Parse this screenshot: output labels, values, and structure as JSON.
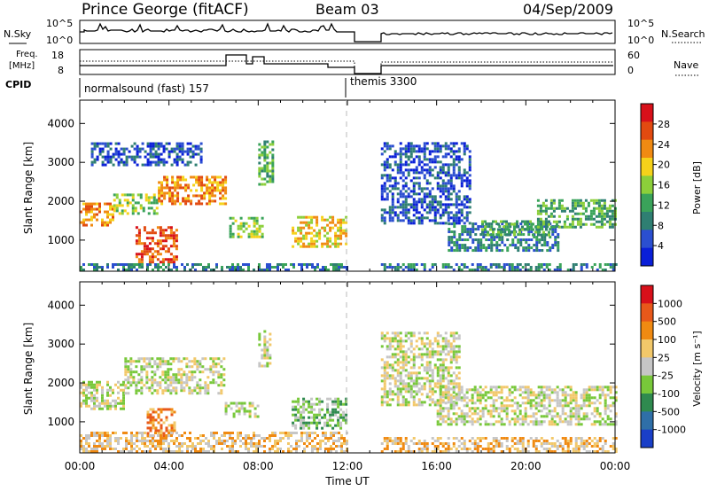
{
  "header": {
    "station": "Prince George (fitACF)",
    "beam": "Beam 03",
    "date": "04/Sep/2009"
  },
  "noise_panel": {
    "left_label": "N.Sky",
    "left_ticks": [
      "10^5",
      "10^0"
    ],
    "right_label": "N.Search",
    "right_ticks": [
      "10^5",
      "10^0"
    ]
  },
  "freq_panel": {
    "left_label_1": "Freq.",
    "left_label_2": "[MHz]",
    "left_ticks": [
      "18",
      "8"
    ],
    "right_label": "Nave",
    "right_ticks": [
      "60",
      "0"
    ]
  },
  "cpid": {
    "label": "CPID",
    "mode_1": "normalsound (fast) 157",
    "mode_2": "themis 3300"
  },
  "x_axis": {
    "label": "Time UT",
    "ticks": [
      "00:00",
      "04:00",
      "08:00",
      "12:00",
      "16:00",
      "20:00",
      "00:00"
    ]
  },
  "power_colorbar": {
    "label": "Power [dB]",
    "ticks": [
      "28",
      "24",
      "20",
      "16",
      "12",
      "8",
      "4"
    ]
  },
  "velocity_colorbar": {
    "label": "Velocity [m s⁻¹]",
    "ticks": [
      "1000",
      "500",
      "100",
      "25",
      "-25",
      "-100",
      "-500",
      "-1000"
    ]
  },
  "chart_data": [
    {
      "type": "heatmap",
      "name": "power",
      "xlabel": "Time UT",
      "ylabel": "Slant Range [km]",
      "xlim": [
        0,
        24
      ],
      "ylim": [
        200,
        4600
      ],
      "yticks": [
        "1000",
        "2000",
        "3000",
        "4000"
      ],
      "colorbar_colors": [
        "#0a1fd8",
        "#2b4fd0",
        "#2f7f72",
        "#3aa35a",
        "#8ccf3a",
        "#f5d21a",
        "#f08a12",
        "#e24a10",
        "#d8101a"
      ],
      "gap_hours": [
        12,
        13.5
      ],
      "regions": [
        {
          "t0": 0.0,
          "t1": 1.5,
          "r0": 1350,
          "r1": 1900,
          "level": 6
        },
        {
          "t0": 1.5,
          "t1": 3.5,
          "r0": 1650,
          "r1": 2150,
          "level": 4
        },
        {
          "t0": 3.5,
          "t1": 6.5,
          "r0": 1900,
          "r1": 2600,
          "level": 6
        },
        {
          "t0": 2.5,
          "t1": 4.3,
          "r0": 400,
          "r1": 1300,
          "level": 7
        },
        {
          "t0": 0.5,
          "t1": 5.5,
          "r0": 2900,
          "r1": 3500,
          "level": 1
        },
        {
          "t0": 6.7,
          "t1": 8.2,
          "r0": 1050,
          "r1": 1550,
          "level": 4
        },
        {
          "t0": 8.0,
          "t1": 8.6,
          "r0": 2400,
          "r1": 3500,
          "level": 3
        },
        {
          "t0": 9.5,
          "t1": 11.9,
          "r0": 800,
          "r1": 1600,
          "level": 5
        },
        {
          "t0": 13.5,
          "t1": 17.5,
          "r0": 1400,
          "r1": 3500,
          "level": 1
        },
        {
          "t0": 16.5,
          "t1": 21.5,
          "r0": 700,
          "r1": 1400,
          "level": 2
        },
        {
          "t0": 18.0,
          "t1": 21.0,
          "r0": 1100,
          "r1": 1500,
          "level": 3
        },
        {
          "t0": 20.5,
          "t1": 24.0,
          "r0": 1300,
          "r1": 2000,
          "level": 3
        },
        {
          "t0": 0.0,
          "t1": 12.0,
          "r0": 200,
          "r1": 400,
          "level": 2
        },
        {
          "t0": 13.5,
          "t1": 24.0,
          "r0": 200,
          "r1": 400,
          "level": 2
        }
      ]
    },
    {
      "type": "heatmap",
      "name": "velocity",
      "xlabel": "Time UT",
      "ylabel": "Slant Range [km]",
      "xlim": [
        0,
        24
      ],
      "ylim": [
        200,
        4600
      ],
      "yticks": [
        "1000",
        "2000",
        "3000",
        "4000"
      ],
      "colorbar_colors": [
        "#1a3fc8",
        "#2f6fa8",
        "#2f8a4f",
        "#78c83a",
        "#c6c6c6",
        "#f2c86a",
        "#f08a12",
        "#e8581a",
        "#d8101a"
      ],
      "gap_hours": [
        12,
        13.5
      ],
      "regions": [
        {
          "t0": 0.0,
          "t1": 2.0,
          "r0": 1300,
          "r1": 2000,
          "level": 4
        },
        {
          "t0": 2.0,
          "t1": 6.5,
          "r0": 1700,
          "r1": 2600,
          "level": 4
        },
        {
          "t0": 3.0,
          "t1": 4.3,
          "r0": 600,
          "r1": 1300,
          "level": 6
        },
        {
          "t0": 6.5,
          "t1": 8.0,
          "r0": 1100,
          "r1": 1500,
          "level": 4
        },
        {
          "t0": 8.0,
          "t1": 8.5,
          "r0": 2400,
          "r1": 3300,
          "level": 4
        },
        {
          "t0": 9.5,
          "t1": 11.9,
          "r0": 800,
          "r1": 1600,
          "level": 3
        },
        {
          "t0": 0.0,
          "t1": 12.0,
          "r0": 200,
          "r1": 700,
          "level": 5
        },
        {
          "t0": 13.5,
          "t1": 17.0,
          "r0": 1400,
          "r1": 3300,
          "level": 4
        },
        {
          "t0": 16.0,
          "t1": 24.0,
          "r0": 900,
          "r1": 1900,
          "level": 4
        },
        {
          "t0": 13.5,
          "t1": 24.0,
          "r0": 200,
          "r1": 600,
          "level": 5
        }
      ]
    }
  ]
}
